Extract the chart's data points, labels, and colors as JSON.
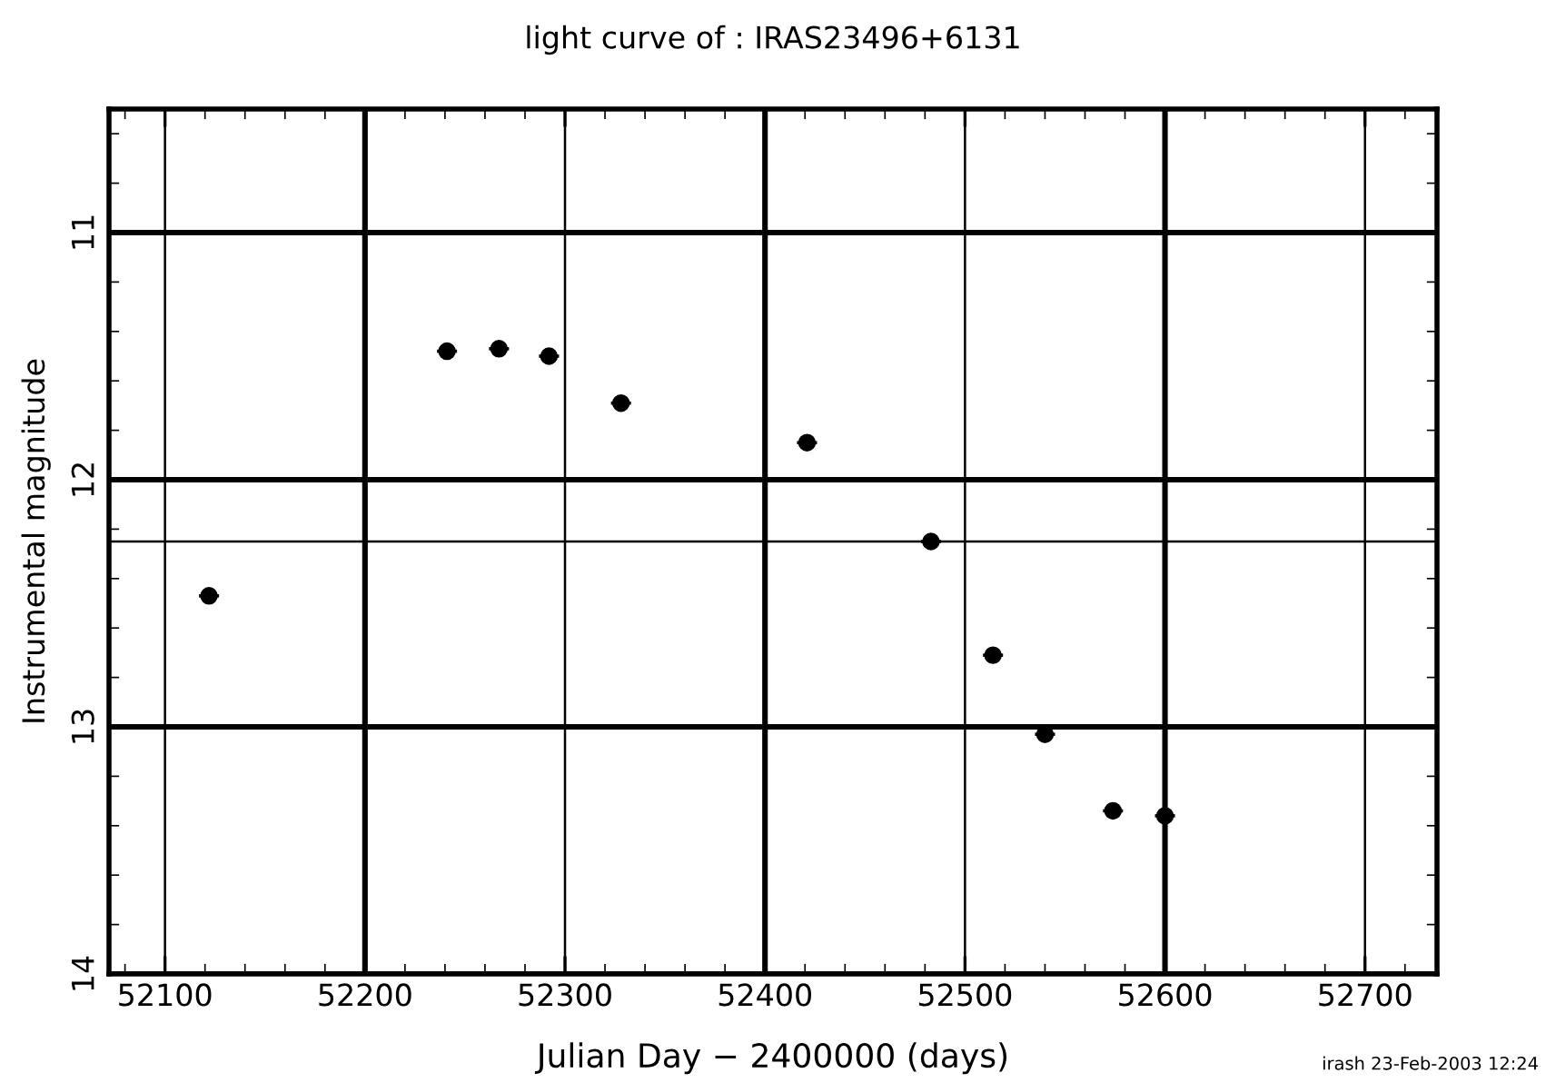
{
  "chart_data": {
    "type": "scatter",
    "title": "light curve of : IRAS23496+6131",
    "xlabel": "Julian Day − 2400000 (days)",
    "ylabel": "Instrumental magnitude",
    "annotations": [
      "irash 23-Feb-2003 12:24"
    ],
    "x": [
      52122,
      52241,
      52267,
      52292,
      52328,
      52421,
      52483,
      52514,
      52540,
      52574,
      52600
    ],
    "series": [
      {
        "color": "#000000",
        "values": [
          12.47,
          11.48,
          11.47,
          11.5,
          11.69,
          11.85,
          12.25,
          12.71,
          13.03,
          13.34,
          13.36
        ],
        "xerrors": [
          5,
          5,
          5,
          5,
          5,
          5,
          5,
          5,
          5,
          5,
          5
        ]
      }
    ],
    "marker": "circle",
    "xlim": [
      52072,
      52736
    ],
    "ylim": [
      14,
      10.5
    ],
    "xticks": [
      52100,
      52200,
      52300,
      52400,
      52500,
      52600,
      52700
    ],
    "yticks": [
      11,
      12,
      13,
      14
    ],
    "ref_lines": [
      {
        "axis": "y",
        "value": 12.25,
        "label": null,
        "color": "#000000"
      }
    ],
    "grid": true,
    "legend": false
  }
}
